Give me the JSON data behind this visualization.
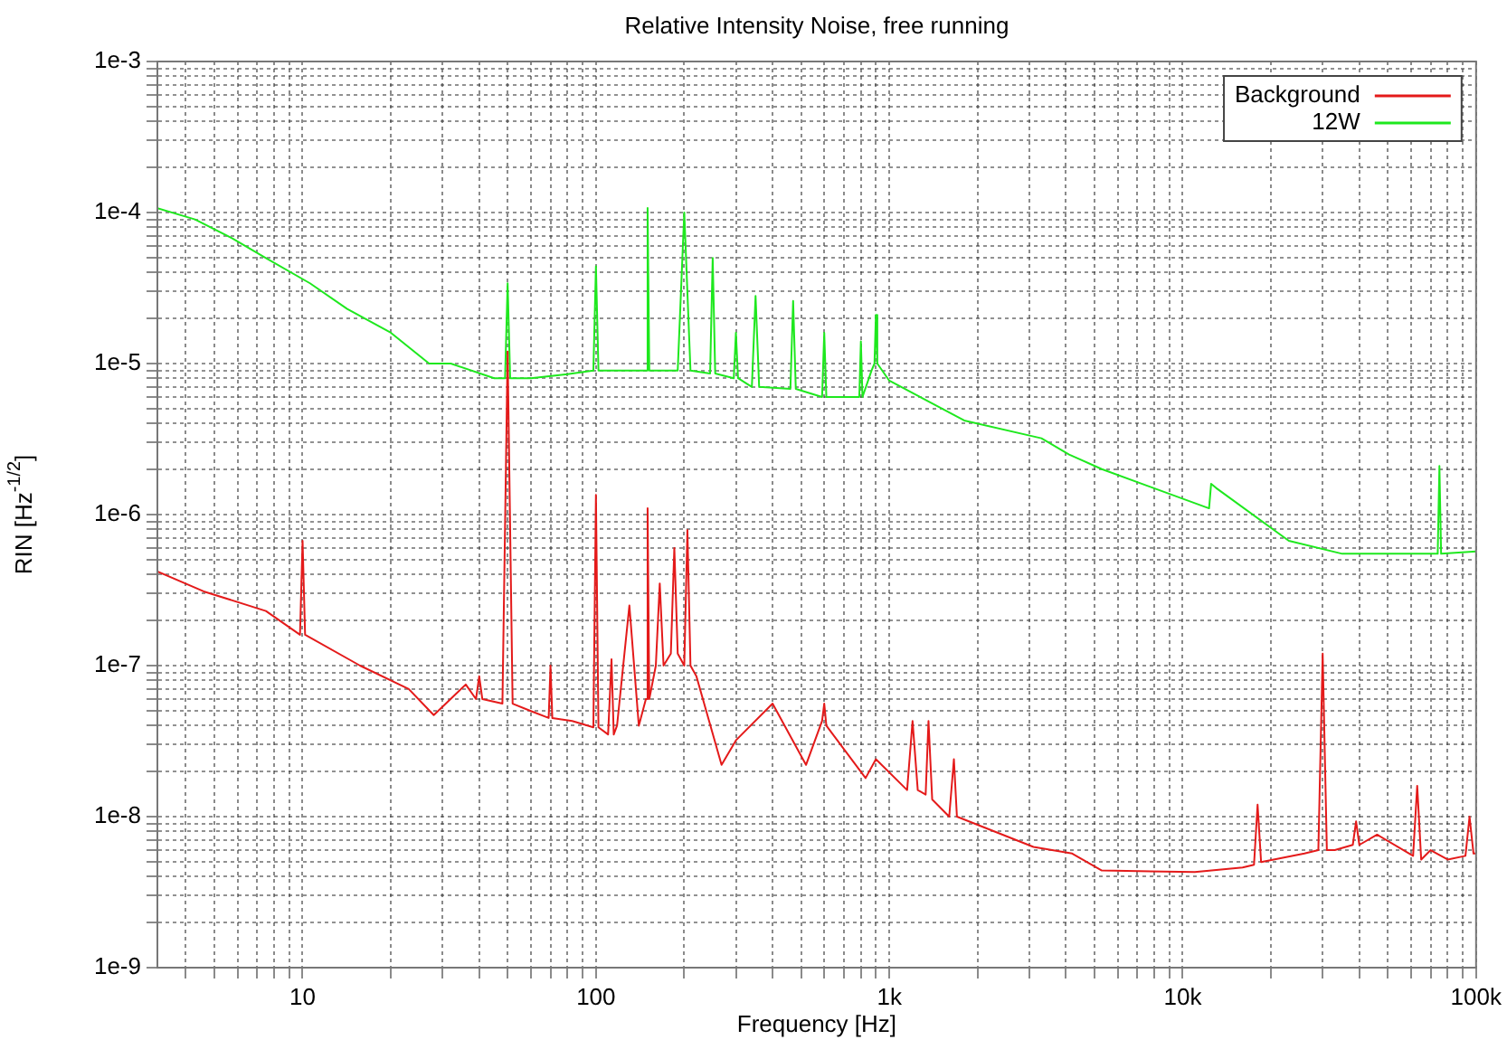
{
  "chart_data": {
    "type": "line",
    "title": "Relative Intensity Noise, free running",
    "xlabel": "Frequency [Hz]",
    "ylabel": "RIN [Hz$^{-1/2}$]",
    "log": "xy",
    "grid": true,
    "legend": "top right",
    "marker": "none",
    "line_style": "solid",
    "xlim": [
      3.2,
      100000
    ],
    "ylim": [
      1e-09,
      0.001
    ],
    "xticks": [
      {
        "value": 4,
        "label": null
      },
      {
        "value": 5,
        "label": null
      },
      {
        "value": 6,
        "label": null
      },
      {
        "value": 7,
        "label": null
      },
      {
        "value": 8,
        "label": null
      },
      {
        "value": 9,
        "label": null
      },
      10,
      {
        "value": 20,
        "label": null
      },
      {
        "value": 30,
        "label": null
      },
      {
        "value": 40,
        "label": null
      },
      {
        "value": 50,
        "label": null
      },
      {
        "value": 60,
        "label": null
      },
      {
        "value": 70,
        "label": null
      },
      {
        "value": 80,
        "label": null
      },
      {
        "value": 90,
        "label": null
      },
      100,
      {
        "value": 200,
        "label": null
      },
      {
        "value": 300,
        "label": null
      },
      {
        "value": 400,
        "label": null
      },
      {
        "value": 500,
        "label": null
      },
      {
        "value": 600,
        "label": null
      },
      {
        "value": 700,
        "label": null
      },
      {
        "value": 800,
        "label": null
      },
      {
        "value": 900,
        "label": null
      },
      {
        "value": 1000,
        "label": "1k"
      },
      {
        "value": 2000,
        "label": null
      },
      {
        "value": 3000,
        "label": null
      },
      {
        "value": 4000,
        "label": null
      },
      {
        "value": 5000,
        "label": null
      },
      {
        "value": 6000,
        "label": null
      },
      {
        "value": 7000,
        "label": null
      },
      {
        "value": 8000,
        "label": null
      },
      {
        "value": 9000,
        "label": null
      },
      {
        "value": 10000,
        "label": "10k"
      },
      {
        "value": 20000,
        "label": null
      },
      {
        "value": 30000,
        "label": null
      },
      {
        "value": 40000,
        "label": null
      },
      {
        "value": 50000,
        "label": null
      },
      {
        "value": 60000,
        "label": null
      },
      {
        "value": 70000,
        "label": null
      },
      {
        "value": 80000,
        "label": null
      },
      {
        "value": 90000,
        "label": null
      },
      {
        "value": 100000,
        "label": "100k"
      }
    ],
    "yticks": [
      {
        "value": 1e-09,
        "label": "1e-9"
      },
      {
        "value": 2e-09,
        "label": null
      },
      {
        "value": 3e-09,
        "label": null
      },
      {
        "value": 4e-09,
        "label": null
      },
      {
        "value": 5e-09,
        "label": null
      },
      {
        "value": 6e-09,
        "label": null
      },
      {
        "value": 7e-09,
        "label": null
      },
      {
        "value": 8e-09,
        "label": null
      },
      {
        "value": 9e-09,
        "label": null
      },
      {
        "value": 1e-08,
        "label": "1e-8"
      },
      {
        "value": 2e-08,
        "label": null
      },
      {
        "value": 3e-08,
        "label": null
      },
      {
        "value": 4e-08,
        "label": null
      },
      {
        "value": 5e-08,
        "label": null
      },
      {
        "value": 6e-08,
        "label": null
      },
      {
        "value": 7e-08,
        "label": null
      },
      {
        "value": 8e-08,
        "label": null
      },
      {
        "value": 9e-08,
        "label": null
      },
      {
        "value": 1e-07,
        "label": "1e-7"
      },
      {
        "value": 2e-07,
        "label": null
      },
      {
        "value": 3e-07,
        "label": null
      },
      {
        "value": 4e-07,
        "label": null
      },
      {
        "value": 5e-07,
        "label": null
      },
      {
        "value": 6e-07,
        "label": null
      },
      {
        "value": 7e-07,
        "label": null
      },
      {
        "value": 8e-07,
        "label": null
      },
      {
        "value": 9e-07,
        "label": null
      },
      {
        "value": 1e-06,
        "label": "1e-6"
      },
      {
        "value": 2e-06,
        "label": null
      },
      {
        "value": 3e-06,
        "label": null
      },
      {
        "value": 4e-06,
        "label": null
      },
      {
        "value": 5e-06,
        "label": null
      },
      {
        "value": 6e-06,
        "label": null
      },
      {
        "value": 7e-06,
        "label": null
      },
      {
        "value": 8e-06,
        "label": null
      },
      {
        "value": 9e-06,
        "label": null
      },
      {
        "value": 1e-05,
        "label": "1e-5"
      },
      {
        "value": 2e-05,
        "label": null
      },
      {
        "value": 3e-05,
        "label": null
      },
      {
        "value": 4e-05,
        "label": null
      },
      {
        "value": 5e-05,
        "label": null
      },
      {
        "value": 6e-05,
        "label": null
      },
      {
        "value": 7e-05,
        "label": null
      },
      {
        "value": 8e-05,
        "label": null
      },
      {
        "value": 9e-05,
        "label": null
      },
      {
        "value": 0.0001,
        "label": "1e-4"
      },
      {
        "value": 0.0002,
        "label": null
      },
      {
        "value": 0.0003,
        "label": null
      },
      {
        "value": 0.0004,
        "label": null
      },
      {
        "value": 0.0005,
        "label": null
      },
      {
        "value": 0.0006,
        "label": null
      },
      {
        "value": 0.0007,
        "label": null
      },
      {
        "value": 0.0008,
        "label": null
      },
      {
        "value": 0.0009,
        "label": null
      },
      {
        "value": 0.001,
        "label": "1e-3"
      }
    ],
    "series": [
      {
        "name": "Background",
        "color": "#e41a1a",
        "x": [
          3.2,
          4.6,
          7.5,
          9.8,
          10,
          10.2,
          15.7,
          23,
          28,
          36,
          39,
          40,
          41,
          48,
          50,
          52,
          60,
          69,
          70,
          71,
          83,
          98,
          100,
          102,
          110,
          113,
          115,
          118,
          130,
          140,
          148,
          150,
          152,
          160,
          165,
          170,
          180,
          185,
          190,
          200,
          205,
          210,
          220,
          268,
          300,
          400,
          520,
          590,
          600,
          610,
          830,
          900,
          1150,
          1200,
          1250,
          1330,
          1360,
          1400,
          1600,
          1660,
          1700,
          3100,
          4200,
          5300,
          11000,
          16000,
          17500,
          18000,
          18500,
          26000,
          29000,
          30000,
          31000,
          33000,
          38000,
          39000,
          40000,
          46000,
          61000,
          63000,
          65000,
          70000,
          80000,
          92000,
          95000,
          98000,
          100000
        ],
        "values": [
          4.2e-07,
          3.1e-07,
          2.3e-07,
          1.6e-07,
          6.7e-07,
          1.6e-07,
          1e-07,
          7e-08,
          4.7e-08,
          7.5e-08,
          6e-08,
          8.5e-08,
          6e-08,
          5.6e-08,
          1.2e-05,
          5.6e-08,
          5e-08,
          4.5e-08,
          1e-07,
          4.5e-08,
          4.3e-08,
          3.9e-08,
          1.35e-06,
          3.9e-08,
          3.5e-08,
          1.1e-07,
          3.5e-08,
          4e-08,
          2.5e-07,
          4e-08,
          6e-08,
          1.1e-06,
          6e-08,
          1e-07,
          3.5e-07,
          1e-07,
          1.2e-07,
          6e-07,
          1.2e-07,
          1e-07,
          7.9e-07,
          1e-07,
          8.5e-08,
          2.2e-08,
          3.2e-08,
          5.6e-08,
          2.2e-08,
          4.3e-08,
          5.6e-08,
          4e-08,
          1.8e-08,
          2.4e-08,
          1.5e-08,
          4.3e-08,
          1.5e-08,
          1.4e-08,
          4.3e-08,
          1.3e-08,
          1e-08,
          2.4e-08,
          1e-08,
          6.3e-09,
          5.7e-09,
          4.4e-09,
          4.3e-09,
          4.6e-09,
          4.8e-09,
          1.2e-08,
          5e-09,
          5.7e-09,
          6e-09,
          1.2e-07,
          6e-09,
          6e-09,
          6.5e-09,
          9.3e-09,
          6.5e-09,
          7.6e-09,
          5.5e-09,
          1.6e-08,
          5.2e-09,
          6e-09,
          5.2e-09,
          5.5e-09,
          1e-08,
          5.7e-09,
          5.7e-09
        ]
      },
      {
        "name": "12W",
        "color": "#1ee81e",
        "x": [
          3.2,
          4.3,
          5.8,
          7.5,
          10.6,
          14.2,
          20,
          27,
          32,
          45,
          49,
          50,
          51,
          60,
          80,
          98,
          100,
          102,
          120,
          148,
          150,
          152,
          190,
          200,
          210,
          245,
          250,
          255,
          295,
          300,
          305,
          340,
          350,
          360,
          460,
          470,
          480,
          590,
          600,
          610,
          680,
          790,
          800,
          810,
          870,
          890,
          900,
          910,
          1000,
          1800,
          3300,
          4100,
          5300,
          12300,
          12500,
          13000,
          23000,
          35000,
          74000,
          75000,
          76000,
          100000
        ],
        "values": [
          0.000107,
          9e-05,
          6.7e-05,
          5e-05,
          3.4e-05,
          2.3e-05,
          1.6e-05,
          1e-05,
          1e-05,
          8e-06,
          8e-06,
          3.4e-05,
          8e-06,
          8e-06,
          8.5e-06,
          9e-06,
          4.4e-05,
          9e-06,
          9e-06,
          9e-06,
          0.000107,
          9e-06,
          9e-06,
          0.0001,
          9e-06,
          8.6e-06,
          5e-05,
          8.6e-06,
          8e-06,
          1.6e-05,
          8e-06,
          7e-06,
          2.8e-05,
          7e-06,
          6.8e-06,
          2.6e-05,
          6.8e-06,
          6e-06,
          1.6e-05,
          6e-06,
          6e-06,
          6e-06,
          1.4e-05,
          6e-06,
          9e-06,
          1e-05,
          2.1e-05,
          1e-05,
          7.7e-06,
          4.2e-06,
          3.2e-06,
          2.5e-06,
          2e-06,
          1.1e-06,
          1.6e-06,
          1.5e-06,
          6.7e-07,
          5.5e-07,
          5.5e-07,
          2.1e-06,
          5.5e-07,
          5.7e-07
        ]
      }
    ]
  }
}
